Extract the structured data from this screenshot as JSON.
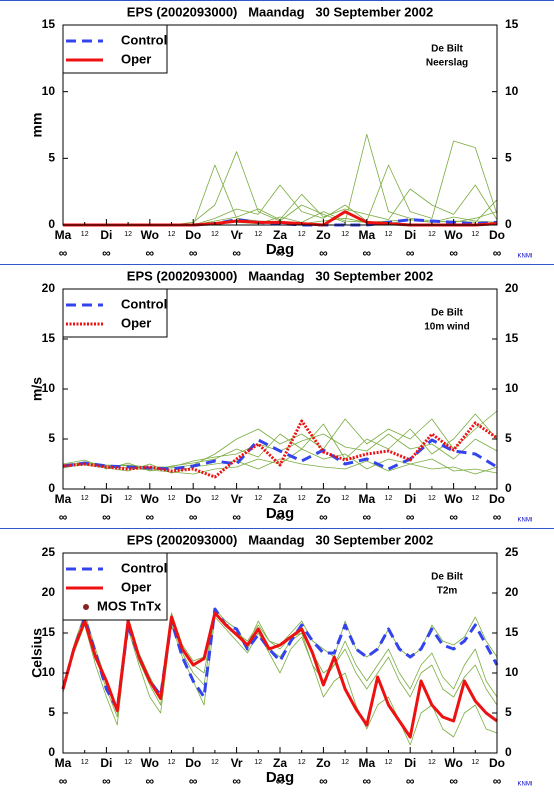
{
  "chart_data": [
    {
      "type": "line",
      "title": "EPS (2002093000)   Maandag   30 September 2002",
      "ylabel": "mm",
      "xlabel": "Dag",
      "annotations": [
        "De Bilt",
        "Neerslag"
      ],
      "credit": "KNMI",
      "x": [
        0,
        12,
        24,
        36,
        48,
        60,
        72,
        84,
        96,
        108,
        120,
        132,
        144,
        156,
        168,
        180,
        192,
        204,
        216,
        228,
        240
      ],
      "xlim": [
        0,
        240
      ],
      "xticks": [
        {
          "value": 0,
          "label": "Ma"
        },
        12,
        {
          "value": 24,
          "label": "Di"
        },
        {
          "value": 36,
          "label": "12"
        },
        {
          "value": 48,
          "label": "Wo"
        },
        {
          "value": 60,
          "label": "12"
        },
        {
          "value": 72,
          "label": "Do"
        },
        {
          "value": 84,
          "label": "12"
        },
        {
          "value": 96,
          "label": "Vr"
        },
        {
          "value": 108,
          "label": "12"
        },
        {
          "value": 120,
          "label": "Za"
        },
        {
          "value": 132,
          "label": "12"
        },
        {
          "value": 144,
          "label": "Zo"
        },
        {
          "value": 156,
          "label": "12"
        },
        {
          "value": 168,
          "label": "Ma"
        },
        {
          "value": 180,
          "label": "12"
        },
        {
          "value": 192,
          "label": "Di"
        },
        {
          "value": 204,
          "label": "12"
        },
        {
          "value": 216,
          "label": "Wo"
        },
        {
          "value": 228,
          "label": "12"
        },
        {
          "value": 240,
          "label": "Do"
        }
      ],
      "day_marks": [
        "∞",
        "∞",
        "∞",
        "∞",
        "∞",
        "∞",
        "∞",
        "∞",
        "∞",
        "∞",
        "∞"
      ],
      "ylim": [
        0,
        15
      ],
      "yticks": [
        0,
        5,
        10,
        15
      ],
      "series": [
        {
          "color": "#7aac3f",
          "values": [
            0,
            0,
            0,
            0,
            0,
            0,
            0,
            4.5,
            0.5,
            0.3,
            0.2,
            0.1,
            0.3,
            0.5,
            0.2,
            0.3,
            0.4,
            0.2,
            0.6,
            0.3,
            0.2
          ]
        },
        {
          "color": "#7aac3f",
          "values": [
            0,
            0,
            0,
            0,
            0,
            0,
            0.2,
            1.5,
            5.5,
            1.0,
            0.3,
            1.5,
            0.8,
            0.2,
            6.8,
            1.0,
            0.5,
            0.3,
            0.2,
            0.5,
            1.0
          ]
        },
        {
          "color": "#7aac3f",
          "values": [
            0,
            0,
            0,
            0,
            0,
            0,
            0,
            0.5,
            1.2,
            0.8,
            3.0,
            1.0,
            0.5,
            1.5,
            0.3,
            4.5,
            1.0,
            0.5,
            6.3,
            5.8,
            0.8
          ]
        },
        {
          "color": "#7aac3f",
          "values": [
            0,
            0,
            0,
            0,
            0,
            0,
            0,
            0.3,
            0.6,
            1.2,
            0.4,
            2.3,
            0.6,
            1.2,
            0.8,
            0.4,
            2.7,
            1.5,
            0.8,
            3.0,
            0.4
          ]
        },
        {
          "color": "#7aac3f",
          "values": [
            0,
            0,
            0,
            0,
            0,
            0,
            0,
            0.1,
            0.2,
            0.1,
            0.6,
            0.2,
            1.0,
            0.3,
            0.2,
            0.1,
            0.4,
            0.2,
            0.3,
            0.2,
            1.9
          ]
        },
        {
          "name": "Control",
          "color": "#3344ee",
          "style": "dashed",
          "values": [
            0,
            0,
            0,
            0,
            0,
            0,
            0,
            0.1,
            0.4,
            0.2,
            0.1,
            0,
            0,
            0,
            0,
            0.2,
            0.4,
            0.3,
            0.2,
            0.1,
            0.2
          ]
        },
        {
          "name": "Oper",
          "color": "#ee1111",
          "style": "solid",
          "values": [
            0,
            0,
            0,
            0,
            0,
            0,
            0,
            0.1,
            0.3,
            0.2,
            0.2,
            0.1,
            0,
            1.0,
            0.2,
            0.1,
            0,
            0,
            0,
            0,
            0.1
          ]
        }
      ]
    },
    {
      "type": "line",
      "title": "EPS (2002093000)   Maandag   30 September 2002",
      "ylabel": "m/s",
      "xlabel": "Dag",
      "annotations": [
        "De Bilt",
        "10m wind"
      ],
      "credit": "KNMI",
      "x": [
        0,
        12,
        24,
        36,
        48,
        60,
        72,
        84,
        96,
        108,
        120,
        132,
        144,
        156,
        168,
        180,
        192,
        204,
        216,
        228,
        240
      ],
      "xlim": [
        0,
        240
      ],
      "xticks": [
        {
          "value": 0,
          "label": "Ma"
        },
        12,
        {
          "value": 24,
          "label": "Di"
        },
        {
          "value": 36,
          "label": "12"
        },
        {
          "value": 48,
          "label": "Wo"
        },
        {
          "value": 60,
          "label": "12"
        },
        {
          "value": 72,
          "label": "Do"
        },
        {
          "value": 84,
          "label": "12"
        },
        {
          "value": 96,
          "label": "Vr"
        },
        {
          "value": 108,
          "label": "12"
        },
        {
          "value": 120,
          "label": "Za"
        },
        {
          "value": 132,
          "label": "12"
        },
        {
          "value": 144,
          "label": "Zo"
        },
        {
          "value": 156,
          "label": "12"
        },
        {
          "value": 168,
          "label": "Ma"
        },
        {
          "value": 180,
          "label": "12"
        },
        {
          "value": 192,
          "label": "Di"
        },
        {
          "value": 204,
          "label": "12"
        },
        {
          "value": 216,
          "label": "Wo"
        },
        {
          "value": 228,
          "label": "12"
        },
        {
          "value": 240,
          "label": "Do"
        }
      ],
      "day_marks": [
        "∞",
        "∞",
        "∞",
        "∞",
        "∞",
        "∞",
        "∞",
        "∞",
        "∞",
        "∞",
        "∞"
      ],
      "ylim": [
        0,
        20
      ],
      "yticks": [
        0,
        5,
        10,
        15,
        20
      ],
      "series": [
        {
          "color": "#7aac3f",
          "values": [
            2.5,
            2.9,
            2.0,
            2.6,
            1.8,
            2.3,
            2.6,
            3.0,
            4.0,
            3.2,
            5.5,
            4.0,
            6.5,
            3.0,
            5.0,
            4.0,
            6.0,
            3.5,
            5.0,
            7.5,
            5.0
          ]
        },
        {
          "color": "#7aac3f",
          "values": [
            2.2,
            2.4,
            2.1,
            1.8,
            2.5,
            1.6,
            2.2,
            2.5,
            2.8,
            2.0,
            3.0,
            2.5,
            2.2,
            2.0,
            2.8,
            1.8,
            2.5,
            2.0,
            2.2,
            1.5,
            2.2
          ]
        },
        {
          "color": "#7aac3f",
          "values": [
            2.4,
            2.7,
            2.4,
            2.3,
            2.0,
            2.1,
            2.4,
            3.5,
            5.0,
            6.0,
            4.5,
            5.5,
            4.0,
            7.0,
            4.5,
            6.0,
            5.0,
            7.0,
            4.0,
            6.0,
            7.8
          ]
        },
        {
          "color": "#7aac3f",
          "values": [
            2.1,
            2.5,
            2.2,
            2.1,
            1.9,
            1.7,
            1.5,
            2.0,
            2.2,
            3.0,
            2.5,
            4.0,
            3.0,
            3.5,
            2.0,
            3.0,
            2.5,
            3.0,
            1.8,
            2.0,
            1.6
          ]
        },
        {
          "color": "#7aac3f",
          "values": [
            2.3,
            2.6,
            2.3,
            2.4,
            2.2,
            2.2,
            2.8,
            3.2,
            3.5,
            4.5,
            3.8,
            4.8,
            5.5,
            4.2,
            3.8,
            5.5,
            4.0,
            4.5,
            3.0,
            5.0,
            3.8
          ]
        },
        {
          "name": "Control",
          "color": "#3344ee",
          "style": "dashed",
          "values": [
            2.3,
            2.6,
            2.3,
            2.2,
            2.1,
            2.0,
            2.3,
            2.8,
            2.5,
            4.9,
            3.8,
            2.8,
            3.9,
            2.5,
            3.0,
            2.0,
            3.0,
            4.9,
            3.8,
            3.5,
            2.2
          ]
        },
        {
          "name": "Oper",
          "color": "#ee1111",
          "style": "dotted",
          "values": [
            2.3,
            2.5,
            2.2,
            2.0,
            2.2,
            1.8,
            2.0,
            1.2,
            3.0,
            4.5,
            2.4,
            6.8,
            3.7,
            2.9,
            3.5,
            3.8,
            2.9,
            5.5,
            3.9,
            6.6,
            5.1
          ]
        }
      ]
    },
    {
      "type": "line",
      "title": "EPS (2002093000)   Maandag   30 September 2002",
      "ylabel": "Celsius",
      "xlabel": "Dag",
      "annotations": [
        "De Bilt",
        "T2m"
      ],
      "credit": "KNMI",
      "x": [
        0,
        6,
        12,
        18,
        24,
        30,
        36,
        42,
        48,
        54,
        60,
        66,
        72,
        78,
        84,
        90,
        96,
        102,
        108,
        114,
        120,
        126,
        132,
        138,
        144,
        150,
        156,
        162,
        168,
        174,
        180,
        186,
        192,
        198,
        204,
        210,
        216,
        222,
        228,
        234,
        240
      ],
      "xlim": [
        0,
        240
      ],
      "xticks": [
        {
          "value": 0,
          "label": "Ma"
        },
        12,
        {
          "value": 24,
          "label": "Di"
        },
        {
          "value": 36,
          "label": "12"
        },
        {
          "value": 48,
          "label": "Wo"
        },
        {
          "value": 60,
          "label": "12"
        },
        {
          "value": 72,
          "label": "Do"
        },
        {
          "value": 84,
          "label": "12"
        },
        {
          "value": 96,
          "label": "Vr"
        },
        {
          "value": 108,
          "label": "12"
        },
        {
          "value": 120,
          "label": "Za"
        },
        {
          "value": 132,
          "label": "12"
        },
        {
          "value": 144,
          "label": "Zo"
        },
        {
          "value": 156,
          "label": "12"
        },
        {
          "value": 168,
          "label": "Ma"
        },
        {
          "value": 180,
          "label": "12"
        },
        {
          "value": 192,
          "label": "Di"
        },
        {
          "value": 204,
          "label": "12"
        },
        {
          "value": 216,
          "label": "Wo"
        },
        {
          "value": 228,
          "label": "12"
        },
        {
          "value": 240,
          "label": "Do"
        }
      ],
      "day_marks": [
        "∞",
        "∞",
        "∞",
        "∞",
        "∞",
        "∞",
        "∞",
        "∞",
        "∞",
        "∞",
        "∞"
      ],
      "ylim": [
        0,
        25
      ],
      "yticks": [
        0,
        5,
        10,
        15,
        20,
        25
      ],
      "series": [
        {
          "color": "#7aac3f",
          "values": [
            8,
            13,
            17,
            12.5,
            8.5,
            5,
            16.5,
            12,
            9,
            7.5,
            17.5,
            13,
            11,
            10,
            17.5,
            16,
            15,
            14,
            16,
            14,
            13.5,
            15,
            16.5,
            14,
            13,
            12,
            16.5,
            13,
            12,
            13,
            15.5,
            13,
            12,
            13,
            16,
            14,
            13.5,
            14.5,
            17,
            14,
            12
          ]
        },
        {
          "color": "#7aac3f",
          "values": [
            7.5,
            12.5,
            16,
            11,
            7,
            3.5,
            15.5,
            11,
            7,
            5,
            16,
            12,
            9,
            6,
            17,
            15.5,
            14,
            12.5,
            15,
            12.5,
            10,
            13,
            14.5,
            11,
            7,
            9,
            10,
            6,
            3,
            6,
            7,
            4,
            1,
            5,
            6,
            3,
            2,
            5,
            6,
            3,
            2.5
          ]
        },
        {
          "color": "#7aac3f",
          "values": [
            8,
            13,
            16.5,
            12,
            8,
            4.5,
            16,
            11.5,
            8.5,
            6,
            16.5,
            12.5,
            10,
            8.5,
            17.5,
            16,
            15,
            13,
            15.5,
            13,
            12,
            14,
            15,
            12.5,
            10,
            11,
            13,
            10,
            8,
            10,
            12,
            9,
            7,
            10,
            11,
            8,
            7,
            9.5,
            11,
            8,
            6
          ]
        },
        {
          "color": "#7aac3f",
          "values": [
            8,
            13.5,
            17.5,
            13,
            9,
            5.5,
            17,
            12.5,
            9.5,
            7,
            17.5,
            13.5,
            11.5,
            12,
            18,
            16.5,
            15.5,
            13.5,
            16.5,
            14,
            13,
            14.5,
            15,
            11,
            9,
            11,
            14,
            11,
            9,
            11,
            13,
            10,
            8,
            11,
            12.5,
            9.5,
            8,
            11,
            13,
            9,
            7
          ]
        },
        {
          "name": "Control",
          "color": "#3344ee",
          "style": "dashed",
          "values": [
            8,
            13,
            16.8,
            12.5,
            8,
            5.5,
            16,
            12,
            9,
            7.2,
            16.5,
            12,
            9,
            7,
            18,
            16,
            15.5,
            13,
            14.8,
            13,
            11.5,
            14,
            16,
            14,
            12.5,
            12.5,
            16,
            13,
            12,
            13,
            15.5,
            13,
            12,
            13,
            15.5,
            13.5,
            13,
            14,
            16,
            13.5,
            11
          ]
        },
        {
          "name": "Oper",
          "color": "#ee1111",
          "style": "solid",
          "values": [
            8,
            13,
            16.5,
            12,
            9,
            5.3,
            16.5,
            12,
            9,
            6.8,
            17,
            13,
            11,
            11.8,
            17.5,
            16,
            14.8,
            13.5,
            15.5,
            13,
            13.5,
            14.5,
            15.5,
            12.5,
            8.5,
            12,
            8,
            5.5,
            3.5,
            9.5,
            6,
            4,
            2,
            9,
            6,
            4.5,
            4,
            9,
            6.5,
            5,
            4
          ]
        },
        {
          "name": "MOS TnTx",
          "color": "#882222",
          "style": "dot",
          "values": [
            null,
            null,
            null,
            null,
            null,
            null,
            null,
            null,
            null,
            null,
            null,
            null,
            null,
            null,
            null,
            null,
            null,
            null,
            null,
            null,
            null,
            null,
            null,
            null,
            null,
            null,
            null,
            null,
            null,
            null,
            null,
            null,
            null,
            null,
            null,
            null,
            null,
            null,
            null,
            null,
            null
          ]
        }
      ]
    }
  ]
}
